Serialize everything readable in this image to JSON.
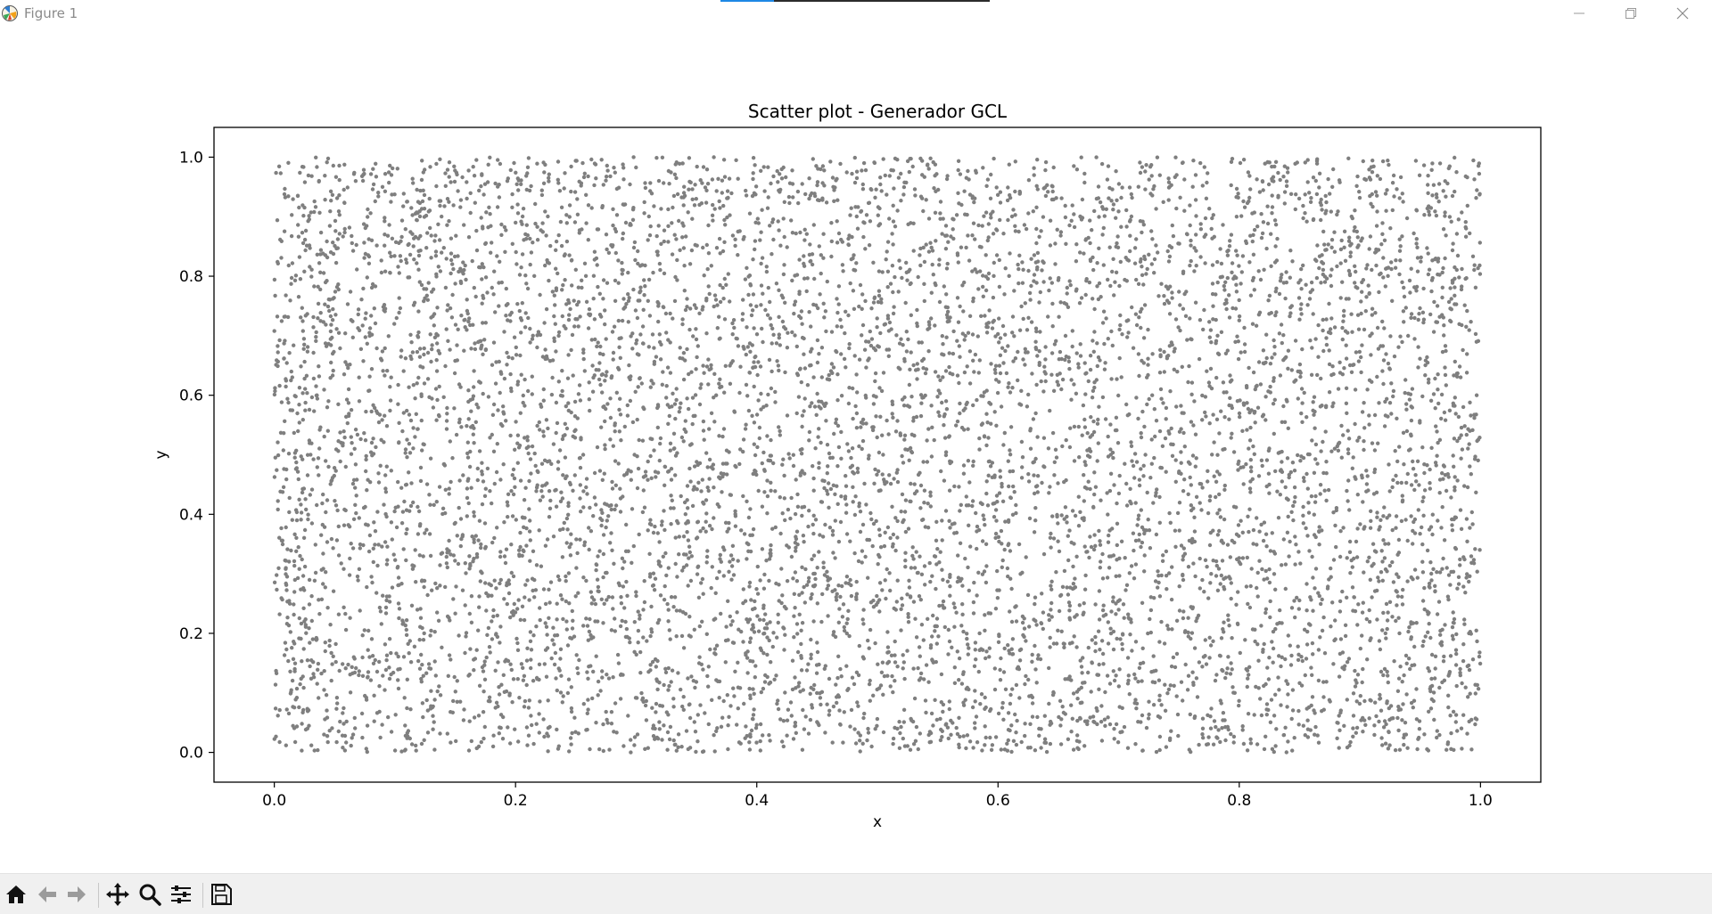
{
  "window": {
    "title": "Figure 1",
    "loading_progress": 0.2
  },
  "window_controls": {
    "minimize_icon": "minimize-icon",
    "maximize_icon": "restore-icon",
    "close_icon": "close-icon"
  },
  "toolbar": {
    "tools": [
      {
        "name": "home-icon"
      },
      {
        "name": "back-arrow-icon"
      },
      {
        "name": "forward-arrow-icon"
      },
      {
        "name": "pan-move-icon"
      },
      {
        "name": "zoom-magnifier-icon"
      },
      {
        "name": "configure-subplots-icon"
      },
      {
        "name": "save-floppy-icon"
      }
    ]
  },
  "chart_data": {
    "type": "scatter",
    "title": "Scatter plot - Generador GCL",
    "xlabel": "x",
    "ylabel": "y",
    "xlim": [
      -0.05,
      1.05
    ],
    "ylim": [
      -0.05,
      1.05
    ],
    "xticks": [
      "0.0",
      "0.2",
      "0.4",
      "0.6",
      "0.8",
      "1.0"
    ],
    "yticks": [
      "0.0",
      "0.2",
      "0.4",
      "0.6",
      "0.8",
      "1.0"
    ],
    "xtick_values": [
      0.0,
      0.2,
      0.4,
      0.6,
      0.8,
      1.0
    ],
    "ytick_values": [
      0.0,
      0.2,
      0.4,
      0.6,
      0.8,
      1.0
    ],
    "point_color": "#000000",
    "point_alpha": 0.5,
    "grid": false,
    "legend": "none",
    "series": [
      {
        "distribution": "uniform",
        "x_range": [
          0.0,
          1.0
        ],
        "y_range": [
          0.0,
          1.0
        ]
      }
    ]
  }
}
